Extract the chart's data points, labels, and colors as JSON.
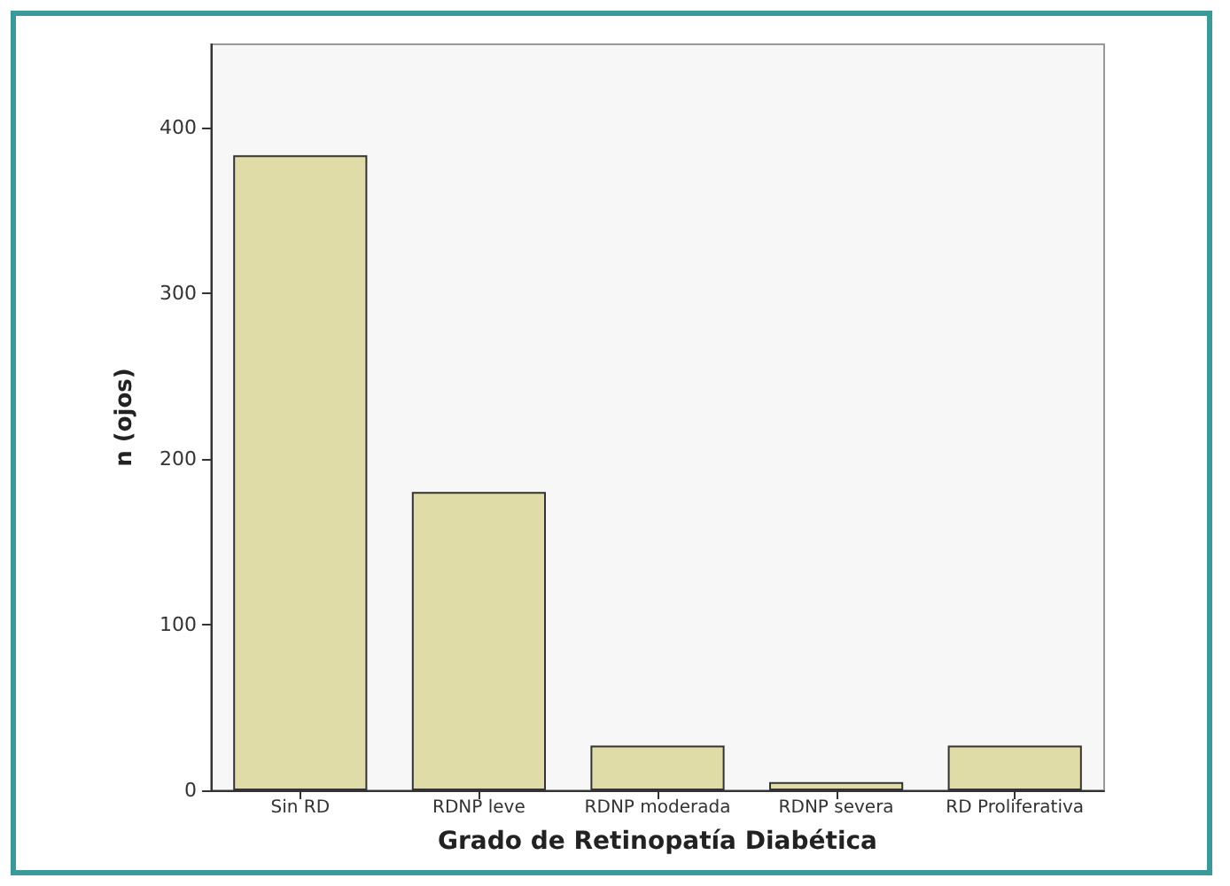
{
  "chart_data": {
    "type": "bar",
    "xlabel": "Grado de Retinopatía Diabética",
    "ylabel": "n (ojos)",
    "categories": [
      "Sin RD",
      "RDNP leve",
      "RDNP moderada",
      "RDNP severa",
      "RD Proliferativa"
    ],
    "values": [
      383,
      180,
      27,
      5,
      27
    ],
    "color": "#e0dca8",
    "ylim": [
      0,
      450
    ],
    "yticks": [
      0,
      100,
      200,
      300,
      400
    ],
    "grid": false
  }
}
